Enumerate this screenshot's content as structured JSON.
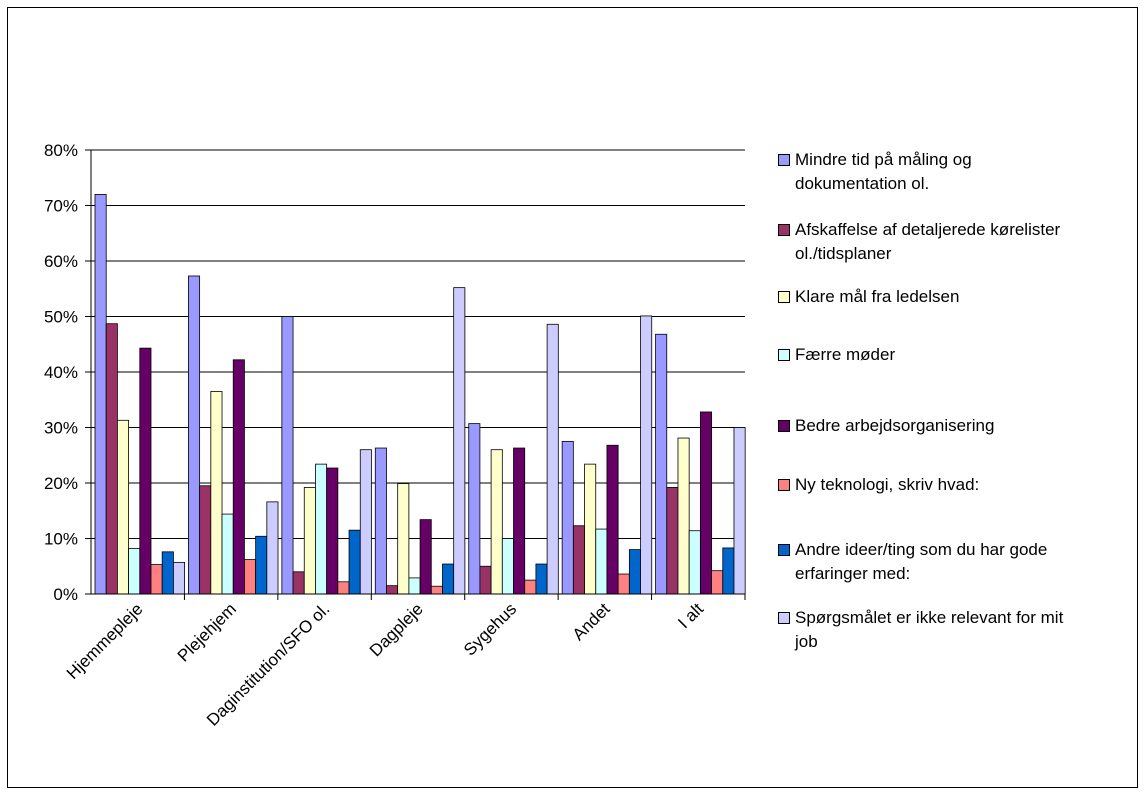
{
  "chart_data": {
    "type": "bar",
    "title": "",
    "xlabel": "",
    "ylabel": "",
    "ylim": [
      0,
      80
    ],
    "yticks": [
      "0%",
      "10%",
      "20%",
      "30%",
      "40%",
      "50%",
      "60%",
      "70%",
      "80%"
    ],
    "grid": true,
    "legend_position": "right",
    "categories": [
      "Hjemmepleje",
      "Plejehjem",
      "Daginstitution/SFO ol.",
      "Dagpleje",
      "Sygehus",
      "Andet",
      "I alt"
    ],
    "series": [
      {
        "name": "Mindre tid på måling og dokumentation ol.",
        "color": "#9999ff",
        "values": [
          72,
          57.3,
          50,
          26.3,
          30.7,
          27.5,
          46.8
        ]
      },
      {
        "name": "Afskaffelse af detaljerede kørelister ol./tidsplaner",
        "color": "#993366",
        "values": [
          48.7,
          19.5,
          4,
          1.5,
          5,
          12.3,
          19.2
        ]
      },
      {
        "name": "Klare mål fra ledelsen",
        "color": "#ffffcc",
        "values": [
          31.3,
          36.5,
          19.2,
          19.9,
          26,
          23.4,
          28.1
        ]
      },
      {
        "name": "Færre møder",
        "color": "#ccffff",
        "values": [
          8.2,
          14.4,
          23.4,
          2.9,
          10,
          11.7,
          11.4
        ]
      },
      {
        "name": "Bedre arbejdsorganisering",
        "color": "#660066",
        "values": [
          44.3,
          42.2,
          22.7,
          13.4,
          26.3,
          26.8,
          32.8
        ]
      },
      {
        "name": "Ny teknologi, skriv hvad:",
        "color": "#ff8080",
        "values": [
          5.3,
          6.2,
          2.2,
          1.4,
          2.5,
          3.6,
          4.2
        ]
      },
      {
        "name": "Andre ideer/ting som du har gode erfaringer med:",
        "color": "#0066cc",
        "values": [
          7.6,
          10.4,
          11.5,
          5.4,
          5.4,
          8,
          8.3
        ]
      },
      {
        "name": "Spørgsmålet er ikke relevant for mit job",
        "color": "#ccccff",
        "values": [
          5.7,
          16.6,
          26,
          55.2,
          48.6,
          50.1,
          30
        ]
      }
    ]
  },
  "legend": [
    {
      "label": "Mindre tid på måling og dokumentation ol.",
      "lines": [
        "Mindre tid på måling og",
        "dokumentation ol."
      ],
      "color": "#9999ff"
    },
    {
      "label": "Afskaffelse af detaljerede kørelister ol./tidsplaner",
      "lines": [
        "Afskaffelse af detaljerede kørelister",
        "ol./tidsplaner"
      ],
      "color": "#993366"
    },
    {
      "label": "Klare mål fra ledelsen",
      "lines": [
        "Klare mål fra ledelsen"
      ],
      "color": "#ffffcc"
    },
    {
      "label": "Færre møder",
      "lines": [
        "Færre møder"
      ],
      "color": "#ccffff"
    },
    {
      "label": "Bedre arbejdsorganisering",
      "lines": [
        "Bedre arbejdsorganisering"
      ],
      "color": "#660066"
    },
    {
      "label": "Ny teknologi, skriv hvad:",
      "lines": [
        "Ny teknologi, skriv hvad:"
      ],
      "color": "#ff8080"
    },
    {
      "label": "Andre ideer/ting som du har gode erfaringer med:",
      "lines": [
        "Andre ideer/ting som du har gode",
        "erfaringer med:"
      ],
      "color": "#0066cc"
    },
    {
      "label": "Spørgsmålet er ikke relevant for mit job",
      "lines": [
        "Spørgsmålet er ikke relevant for mit",
        "job"
      ],
      "color": "#ccccff"
    }
  ]
}
